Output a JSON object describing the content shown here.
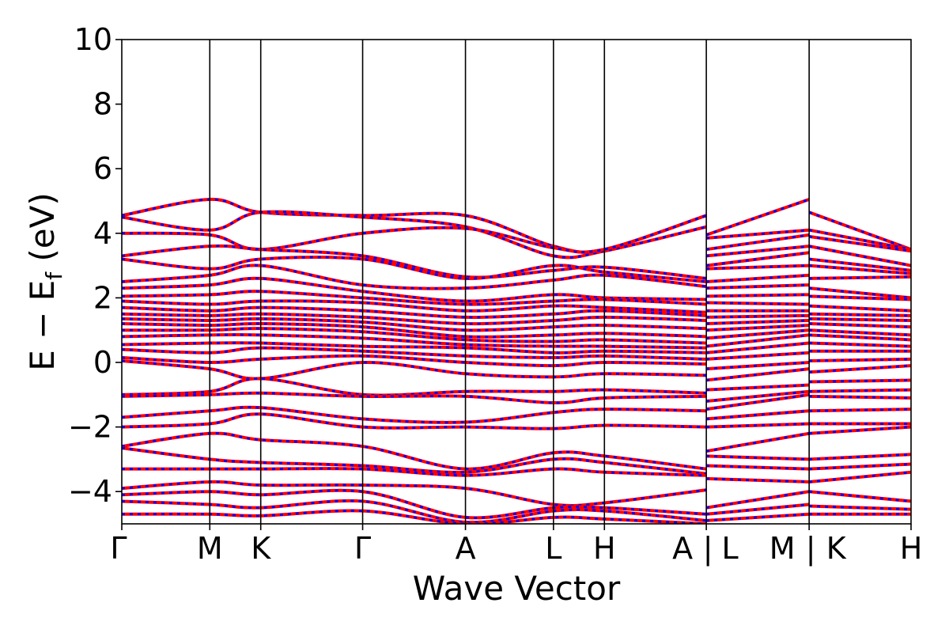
{
  "chart_data": {
    "type": "line",
    "title": "",
    "xlabel": "Wave Vector",
    "ylabel_main": "E − E",
    "ylabel_sub": "f",
    "ylabel_unit": " (eV)",
    "ylim": [
      -5,
      10
    ],
    "yticks": [
      10,
      8,
      6,
      4,
      2,
      0,
      -2,
      -4
    ],
    "ytick_labels": [
      "10",
      "8",
      "6",
      "4",
      "2",
      "0",
      "−2",
      "−4"
    ],
    "x_range": [
      0,
      8.52
    ],
    "kpoints": [
      {
        "x": 0.0,
        "label": "Γ"
      },
      {
        "x": 0.95,
        "label": "M"
      },
      {
        "x": 1.5,
        "label": "K"
      },
      {
        "x": 2.6,
        "label": "Γ"
      },
      {
        "x": 3.71,
        "label": "A"
      },
      {
        "x": 4.66,
        "label": "L"
      },
      {
        "x": 5.21,
        "label": "H"
      },
      {
        "x": 6.31,
        "label": "A | L"
      },
      {
        "x": 7.42,
        "label": "M | K"
      },
      {
        "x": 8.52,
        "label": "H"
      }
    ],
    "kpoint_tick_labels": [
      "Γ",
      "M",
      "K",
      "Γ",
      "A",
      "L",
      "H",
      "A",
      "|",
      "L",
      "M",
      "|",
      "K",
      "H"
    ],
    "grid": false,
    "series_colors": {
      "spin_up": "#ff0000",
      "spin_down": "#0000ff"
    },
    "bands_segment_1": [
      {
        "x": [
          0,
          0.95,
          1.5,
          2.6,
          3.71,
          4.66,
          5.21,
          6.31
        ],
        "y": [
          4.55,
          5.05,
          4.65,
          4.55,
          4.55,
          3.6,
          3.5,
          4.55
        ]
      },
      {
        "x": [
          0,
          0.95,
          1.5,
          2.6,
          3.71,
          4.66,
          5.21,
          6.31
        ],
        "y": [
          4.5,
          4.1,
          4.65,
          4.5,
          4.2,
          3.3,
          3.45,
          4.2
        ]
      },
      {
        "x": [
          0,
          0.95,
          1.5,
          2.6,
          3.71,
          4.66,
          5.21,
          6.31
        ],
        "y": [
          4.0,
          3.95,
          3.5,
          4.0,
          4.15,
          3.55,
          3.5,
          4.55
        ]
      },
      {
        "x": [
          0,
          0.95,
          1.5,
          2.6,
          3.71,
          4.66,
          5.21,
          6.31
        ],
        "y": [
          3.3,
          3.6,
          3.5,
          3.3,
          2.65,
          2.85,
          2.95,
          2.6
        ]
      },
      {
        "x": [
          0,
          0.95,
          1.5,
          2.6,
          3.71,
          4.66,
          5.21,
          6.31
        ],
        "y": [
          3.2,
          2.9,
          3.2,
          3.2,
          2.6,
          3.0,
          2.8,
          2.5
        ]
      },
      {
        "x": [
          0,
          0.95,
          1.5,
          2.6,
          3.71,
          4.66,
          5.21,
          6.31
        ],
        "y": [
          2.5,
          2.7,
          3.0,
          2.4,
          2.3,
          2.55,
          2.7,
          2.35
        ]
      },
      {
        "x": [
          0,
          0.95,
          1.5,
          2.6,
          3.71,
          4.66,
          5.21,
          6.31
        ],
        "y": [
          2.3,
          2.4,
          2.6,
          2.2,
          1.9,
          2.1,
          2.0,
          1.95
        ]
      },
      {
        "x": [
          0,
          0.95,
          1.5,
          2.6,
          3.71,
          4.66,
          5.21,
          6.31
        ],
        "y": [
          2.05,
          2.1,
          2.2,
          2.0,
          1.8,
          1.9,
          1.95,
          1.8
        ]
      },
      {
        "x": [
          0,
          0.95,
          1.5,
          2.6,
          3.71,
          4.66,
          5.21,
          6.31
        ],
        "y": [
          1.9,
          1.8,
          1.9,
          1.85,
          1.6,
          1.75,
          1.7,
          1.55
        ]
      },
      {
        "x": [
          0,
          0.95,
          1.5,
          2.6,
          3.71,
          4.66,
          5.21,
          6.31
        ],
        "y": [
          1.7,
          1.6,
          1.7,
          1.6,
          1.4,
          1.5,
          1.6,
          1.45
        ]
      },
      {
        "x": [
          0,
          0.95,
          1.5,
          2.6,
          3.71,
          4.66,
          5.21,
          6.31
        ],
        "y": [
          1.5,
          1.45,
          1.5,
          1.4,
          1.2,
          1.3,
          1.4,
          1.3
        ]
      },
      {
        "x": [
          0,
          0.95,
          1.5,
          2.6,
          3.71,
          4.66,
          5.21,
          6.31
        ],
        "y": [
          1.35,
          1.3,
          1.35,
          1.25,
          1.0,
          1.1,
          1.15,
          1.05
        ]
      },
      {
        "x": [
          0,
          0.95,
          1.5,
          2.6,
          3.71,
          4.66,
          5.21,
          6.31
        ],
        "y": [
          1.2,
          1.15,
          1.2,
          1.1,
          0.8,
          0.85,
          0.9,
          0.8
        ]
      },
      {
        "x": [
          0,
          0.95,
          1.5,
          2.6,
          3.71,
          4.66,
          5.21,
          6.31
        ],
        "y": [
          1.0,
          1.0,
          1.05,
          0.95,
          0.7,
          0.65,
          0.7,
          0.6
        ]
      },
      {
        "x": [
          0,
          0.95,
          1.5,
          2.6,
          3.71,
          4.66,
          5.21,
          6.31
        ],
        "y": [
          0.8,
          0.85,
          0.85,
          0.75,
          0.55,
          0.5,
          0.5,
          0.45
        ]
      },
      {
        "x": [
          0,
          0.95,
          1.5,
          2.6,
          3.71,
          4.66,
          5.21,
          6.31
        ],
        "y": [
          0.55,
          0.6,
          0.6,
          0.5,
          0.45,
          0.3,
          0.35,
          0.3
        ]
      },
      {
        "x": [
          0,
          0.95,
          1.5,
          2.6,
          3.71,
          4.66,
          5.21,
          6.31
        ],
        "y": [
          0.4,
          0.3,
          0.45,
          0.35,
          0.2,
          0.15,
          0.2,
          0.1
        ]
      },
      {
        "x": [
          0,
          0.95,
          1.5,
          2.6,
          3.71,
          4.66,
          5.21,
          6.31
        ],
        "y": [
          0.15,
          0.0,
          0.1,
          0.2,
          0.0,
          -0.1,
          0.0,
          -0.05
        ]
      },
      {
        "x": [
          0,
          0.95,
          1.5,
          2.6,
          3.71,
          4.66,
          5.21,
          6.31
        ],
        "y": [
          0.05,
          -0.2,
          -0.5,
          0.0,
          -0.35,
          -0.45,
          -0.35,
          -0.4
        ]
      },
      {
        "x": [
          0,
          0.95,
          1.5,
          2.6,
          3.71,
          4.66,
          5.21,
          6.31
        ],
        "y": [
          -1.0,
          -0.9,
          -0.5,
          -1.0,
          -0.9,
          -0.9,
          -0.85,
          -0.95
        ]
      },
      {
        "x": [
          0,
          0.95,
          1.5,
          2.6,
          3.71,
          4.66,
          5.21,
          6.31
        ],
        "y": [
          -1.05,
          -1.0,
          -0.95,
          -1.05,
          -1.05,
          -1.25,
          -1.1,
          -1.05
        ]
      },
      {
        "x": [
          0,
          0.95,
          1.5,
          2.6,
          3.71,
          4.66,
          5.21,
          6.31
        ],
        "y": [
          -1.7,
          -1.5,
          -1.4,
          -1.75,
          -1.85,
          -1.55,
          -1.45,
          -1.5
        ]
      },
      {
        "x": [
          0,
          0.95,
          1.5,
          2.6,
          3.71,
          4.66,
          5.21,
          6.31
        ],
        "y": [
          -2.0,
          -1.9,
          -1.6,
          -2.0,
          -2.0,
          -2.05,
          -1.95,
          -2.0
        ]
      },
      {
        "x": [
          0,
          0.95,
          1.5,
          2.6,
          3.71,
          4.66,
          5.21,
          6.31
        ],
        "y": [
          -2.6,
          -2.2,
          -2.4,
          -2.6,
          -3.3,
          -2.8,
          -2.9,
          -3.3
        ]
      },
      {
        "x": [
          0,
          0.95,
          1.5,
          2.6,
          3.71,
          4.66,
          5.21,
          6.31
        ],
        "y": [
          -2.65,
          -3.0,
          -3.1,
          -3.2,
          -3.4,
          -3.0,
          -3.1,
          -3.45
        ]
      },
      {
        "x": [
          0,
          0.95,
          1.5,
          2.6,
          3.71,
          4.66,
          5.21,
          6.31
        ],
        "y": [
          -3.3,
          -3.3,
          -3.3,
          -3.3,
          -3.5,
          -3.3,
          -3.4,
          -3.5
        ]
      },
      {
        "x": [
          0,
          0.95,
          1.5,
          2.6,
          3.71,
          4.66,
          5.21,
          6.31
        ],
        "y": [
          -3.9,
          -3.7,
          -3.8,
          -3.8,
          -3.9,
          -4.4,
          -4.35,
          -3.95
        ]
      },
      {
        "x": [
          0,
          0.95,
          1.5,
          2.6,
          3.71,
          4.66,
          5.21,
          6.31
        ],
        "y": [
          -4.1,
          -4.0,
          -4.1,
          -4.0,
          -4.8,
          -4.5,
          -4.5,
          -4.7
        ]
      },
      {
        "x": [
          0,
          0.95,
          1.5,
          2.6,
          3.71,
          4.66,
          5.21,
          6.31
        ],
        "y": [
          -4.3,
          -4.4,
          -4.5,
          -4.3,
          -4.95,
          -4.6,
          -4.6,
          -4.9
        ]
      },
      {
        "x": [
          0,
          0.95,
          1.5,
          2.6,
          3.71,
          4.66,
          5.21,
          6.31
        ],
        "y": [
          -4.7,
          -4.7,
          -4.75,
          -4.6,
          -5.0,
          -4.8,
          -4.85,
          -5.0
        ]
      }
    ],
    "bands_segment_2": [
      {
        "x": [
          6.31,
          7.42
        ],
        "y": [
          3.95,
          5.05
        ]
      },
      {
        "x": [
          6.31,
          7.42
        ],
        "y": [
          3.85,
          4.1
        ]
      },
      {
        "x": [
          6.31,
          7.42
        ],
        "y": [
          3.5,
          3.95
        ]
      },
      {
        "x": [
          6.31,
          7.42
        ],
        "y": [
          3.3,
          3.6
        ]
      },
      {
        "x": [
          6.31,
          7.42
        ],
        "y": [
          3.0,
          3.4
        ]
      },
      {
        "x": [
          6.31,
          7.42
        ],
        "y": [
          2.9,
          3.0
        ]
      },
      {
        "x": [
          6.31,
          7.42
        ],
        "y": [
          2.5,
          2.7
        ]
      },
      {
        "x": [
          6.31,
          7.42
        ],
        "y": [
          2.3,
          2.4
        ]
      },
      {
        "x": [
          6.31,
          7.42
        ],
        "y": [
          2.05,
          2.1
        ]
      },
      {
        "x": [
          6.31,
          7.42
        ],
        "y": [
          1.85,
          1.8
        ]
      },
      {
        "x": [
          6.31,
          7.42
        ],
        "y": [
          1.6,
          1.6
        ]
      },
      {
        "x": [
          6.31,
          7.42
        ],
        "y": [
          1.4,
          1.45
        ]
      },
      {
        "x": [
          6.31,
          7.42
        ],
        "y": [
          1.2,
          1.3
        ]
      },
      {
        "x": [
          6.31,
          7.42
        ],
        "y": [
          1.0,
          1.15
        ]
      },
      {
        "x": [
          6.31,
          7.42
        ],
        "y": [
          0.75,
          1.0
        ]
      },
      {
        "x": [
          6.31,
          7.42
        ],
        "y": [
          0.5,
          0.85
        ]
      },
      {
        "x": [
          6.31,
          7.42
        ],
        "y": [
          0.3,
          0.6
        ]
      },
      {
        "x": [
          6.31,
          7.42
        ],
        "y": [
          0.1,
          0.3
        ]
      },
      {
        "x": [
          6.31,
          7.42
        ],
        "y": [
          -0.2,
          0.0
        ]
      },
      {
        "x": [
          6.31,
          7.42
        ],
        "y": [
          -0.55,
          -0.2
        ]
      },
      {
        "x": [
          6.31,
          7.42
        ],
        "y": [
          -0.85,
          -0.7
        ]
      },
      {
        "x": [
          6.31,
          7.42
        ],
        "y": [
          -1.2,
          -0.9
        ]
      },
      {
        "x": [
          6.31,
          7.42
        ],
        "y": [
          -1.45,
          -1.0
        ]
      },
      {
        "x": [
          6.31,
          7.42
        ],
        "y": [
          -1.75,
          -1.5
        ]
      },
      {
        "x": [
          6.31,
          7.42
        ],
        "y": [
          -2.0,
          -1.9
        ]
      },
      {
        "x": [
          6.31,
          7.42
        ],
        "y": [
          -2.75,
          -2.2
        ]
      },
      {
        "x": [
          6.31,
          7.42
        ],
        "y": [
          -2.9,
          -3.0
        ]
      },
      {
        "x": [
          6.31,
          7.42
        ],
        "y": [
          -3.2,
          -3.3
        ]
      },
      {
        "x": [
          6.31,
          7.42
        ],
        "y": [
          -3.6,
          -3.7
        ]
      },
      {
        "x": [
          6.31,
          7.42
        ],
        "y": [
          -4.5,
          -4.0
        ]
      },
      {
        "x": [
          6.31,
          7.42
        ],
        "y": [
          -4.7,
          -4.4
        ]
      },
      {
        "x": [
          6.31,
          7.42
        ],
        "y": [
          -4.9,
          -4.7
        ]
      }
    ],
    "bands_segment_3": [
      {
        "x": [
          7.42,
          8.52
        ],
        "y": [
          4.65,
          3.5
        ]
      },
      {
        "x": [
          7.42,
          8.52
        ],
        "y": [
          4.1,
          3.5
        ]
      },
      {
        "x": [
          7.42,
          8.52
        ],
        "y": [
          3.9,
          3.45
        ]
      },
      {
        "x": [
          7.42,
          8.52
        ],
        "y": [
          3.6,
          3.0
        ]
      },
      {
        "x": [
          7.42,
          8.52
        ],
        "y": [
          3.2,
          2.85
        ]
      },
      {
        "x": [
          7.42,
          8.52
        ],
        "y": [
          3.0,
          2.75
        ]
      },
      {
        "x": [
          7.42,
          8.52
        ],
        "y": [
          2.6,
          2.65
        ]
      },
      {
        "x": [
          7.42,
          8.52
        ],
        "y": [
          2.3,
          2.0
        ]
      },
      {
        "x": [
          7.42,
          8.52
        ],
        "y": [
          2.05,
          1.95
        ]
      },
      {
        "x": [
          7.42,
          8.52
        ],
        "y": [
          1.75,
          1.6
        ]
      },
      {
        "x": [
          7.42,
          8.52
        ],
        "y": [
          1.5,
          1.45
        ]
      },
      {
        "x": [
          7.42,
          8.52
        ],
        "y": [
          1.35,
          1.3
        ]
      },
      {
        "x": [
          7.42,
          8.52
        ],
        "y": [
          1.2,
          1.1
        ]
      },
      {
        "x": [
          7.42,
          8.52
        ],
        "y": [
          1.0,
          0.85
        ]
      },
      {
        "x": [
          7.42,
          8.52
        ],
        "y": [
          0.85,
          0.7
        ]
      },
      {
        "x": [
          7.42,
          8.52
        ],
        "y": [
          0.6,
          0.5
        ]
      },
      {
        "x": [
          7.42,
          8.52
        ],
        "y": [
          0.35,
          0.35
        ]
      },
      {
        "x": [
          7.42,
          8.52
        ],
        "y": [
          0.05,
          0.1
        ]
      },
      {
        "x": [
          7.42,
          8.52
        ],
        "y": [
          -0.3,
          -0.1
        ]
      },
      {
        "x": [
          7.42,
          8.52
        ],
        "y": [
          -0.6,
          -0.55
        ]
      },
      {
        "x": [
          7.42,
          8.52
        ],
        "y": [
          -0.9,
          -0.85
        ]
      },
      {
        "x": [
          7.42,
          8.52
        ],
        "y": [
          -1.05,
          -1.1
        ]
      },
      {
        "x": [
          7.42,
          8.52
        ],
        "y": [
          -1.5,
          -1.45
        ]
      },
      {
        "x": [
          7.42,
          8.52
        ],
        "y": [
          -1.9,
          -1.9
        ]
      },
      {
        "x": [
          7.42,
          8.52
        ],
        "y": [
          -2.2,
          -2.0
        ]
      },
      {
        "x": [
          7.42,
          8.52
        ],
        "y": [
          -3.0,
          -2.85
        ]
      },
      {
        "x": [
          7.42,
          8.52
        ],
        "y": [
          -3.3,
          -3.15
        ]
      },
      {
        "x": [
          7.42,
          8.52
        ],
        "y": [
          -3.7,
          -3.4
        ]
      },
      {
        "x": [
          7.42,
          8.52
        ],
        "y": [
          -4.0,
          -4.3
        ]
      },
      {
        "x": [
          7.42,
          8.52
        ],
        "y": [
          -4.45,
          -4.55
        ]
      },
      {
        "x": [
          7.42,
          8.52
        ],
        "y": [
          -4.7,
          -4.7
        ]
      }
    ]
  }
}
